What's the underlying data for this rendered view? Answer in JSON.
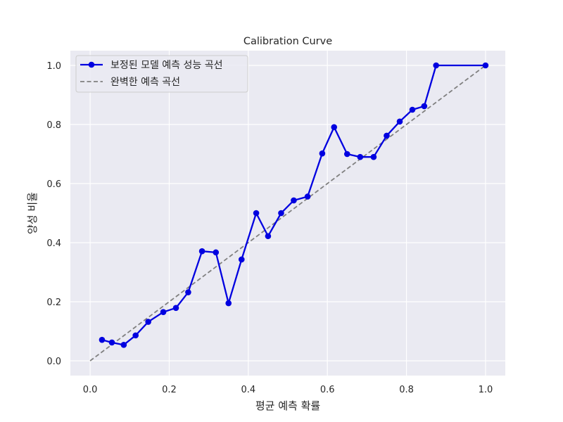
{
  "chart_data": {
    "type": "line",
    "title": "Calibration Curve",
    "xlabel": "평균 예측 확률",
    "ylabel": "양성 비율",
    "xlim": [
      -0.05,
      1.05
    ],
    "ylim": [
      -0.05,
      1.05
    ],
    "xticks": [
      0.0,
      0.2,
      0.4,
      0.6,
      0.8,
      1.0
    ],
    "yticks": [
      0.0,
      0.2,
      0.4,
      0.6,
      0.8,
      1.0
    ],
    "xtick_labels": [
      "0.0",
      "0.2",
      "0.4",
      "0.6",
      "0.8",
      "1.0"
    ],
    "ytick_labels": [
      "0.0",
      "0.2",
      "0.4",
      "0.6",
      "0.8",
      "1.0"
    ],
    "grid": true,
    "legend_position": "top-left",
    "background_color": "#eaeaf2",
    "grid_color": "#ffffff",
    "series": [
      {
        "name": "보정된 모델 예측 성능 곡선",
        "style": "solid line with circle markers",
        "color": "#0000e0",
        "x": [
          0.03,
          0.055,
          0.085,
          0.115,
          0.147,
          0.185,
          0.217,
          0.248,
          0.283,
          0.318,
          0.35,
          0.383,
          0.42,
          0.45,
          0.483,
          0.515,
          0.55,
          0.587,
          0.617,
          0.65,
          0.683,
          0.717,
          0.75,
          0.783,
          0.815,
          0.845,
          0.875,
          1.0
        ],
        "y": [
          0.071,
          0.062,
          0.054,
          0.086,
          0.132,
          0.165,
          0.179,
          0.232,
          0.371,
          0.367,
          0.195,
          0.343,
          0.5,
          0.422,
          0.5,
          0.543,
          0.556,
          0.702,
          0.791,
          0.7,
          0.69,
          0.69,
          0.762,
          0.81,
          0.85,
          0.862,
          1.0,
          1.0
        ]
      },
      {
        "name": "완벽한 예측 곡선",
        "style": "dashed line",
        "color": "#808080",
        "x": [
          0.0,
          1.0
        ],
        "y": [
          0.0,
          1.0
        ]
      }
    ]
  }
}
